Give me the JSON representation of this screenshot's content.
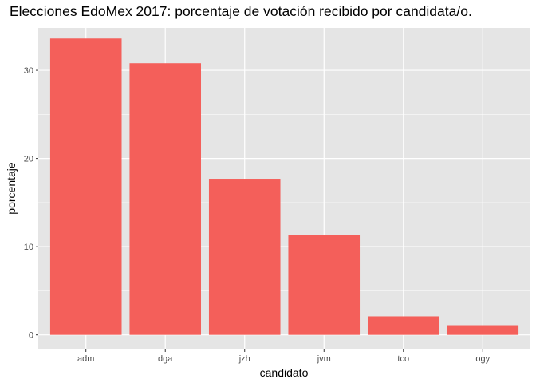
{
  "chart_data": {
    "type": "bar",
    "title": "Elecciones EdoMex 2017: porcentaje de votación recibido por candidata/o.",
    "xlabel": "candidato",
    "ylabel": "porcentaje",
    "categories": [
      "adm",
      "dga",
      "jzh",
      "jvm",
      "tco",
      "ogy"
    ],
    "values": [
      33.6,
      30.8,
      17.7,
      11.3,
      2.1,
      1.1
    ],
    "ylim": [
      0,
      34.8
    ],
    "yticks": [
      0,
      10,
      20,
      30
    ],
    "grid": true,
    "legend": "none",
    "colors": {
      "bar": "#f45f5a",
      "panel": "#e5e5e5",
      "grid": "#ffffff"
    }
  }
}
